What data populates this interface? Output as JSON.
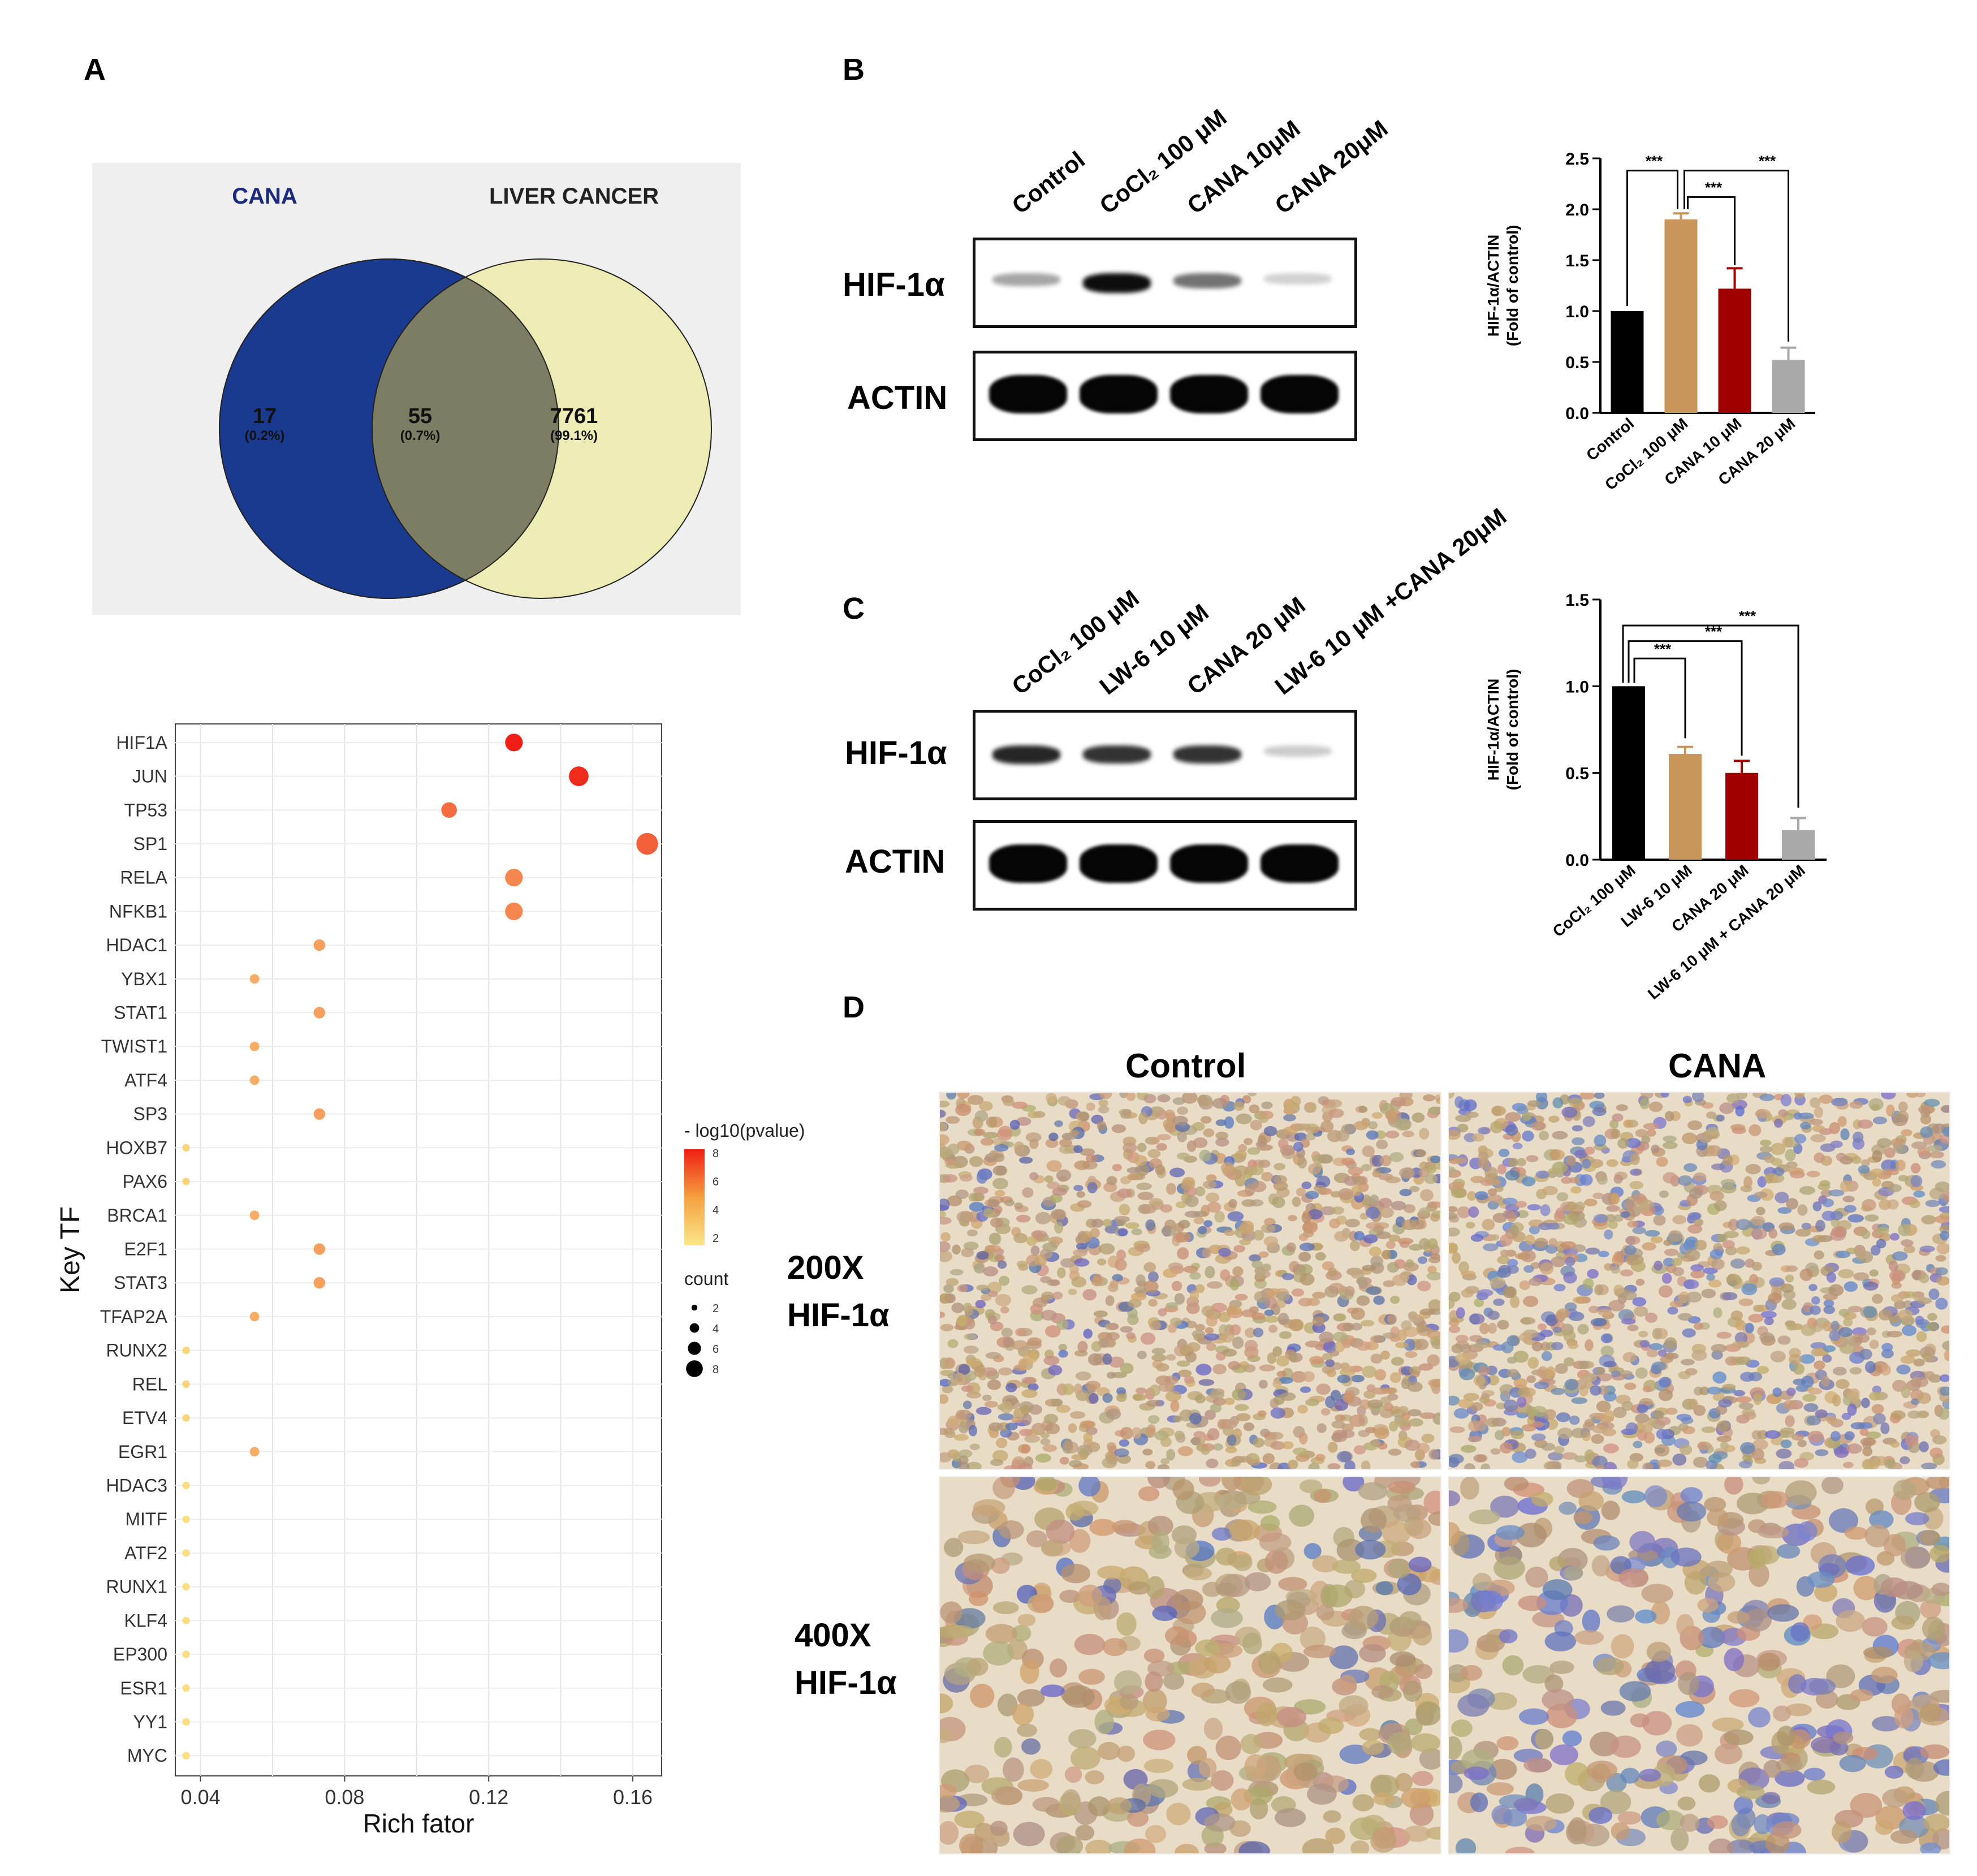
{
  "panels": {
    "a": "A",
    "b": "B",
    "c": "C",
    "d": "D"
  },
  "venn": {
    "left_label": "CANA",
    "right_label": "LIVER CANCER",
    "left_only": "17",
    "left_only_pct": "(0.2%)",
    "overlap": "55",
    "overlap_pct": "(0.7%)",
    "right_only": "7761",
    "right_only_pct": "(99.1%)",
    "colors": {
      "left": "#1a3a8f",
      "right": "#ececb4",
      "overlap": "#7d7d63",
      "background": "#efefef"
    }
  },
  "blot_b": {
    "lanes": [
      "Control",
      "CoCl₂ 100 μM",
      "CANA 10μM",
      "CANA 20μM"
    ],
    "rows": [
      "HIF-1α",
      "ACTIN"
    ],
    "hif_intensity": [
      0.35,
      0.95,
      0.55,
      0.18
    ]
  },
  "blot_c": {
    "lanes": [
      "CoCl₂ 100 μM",
      "LW-6 10 μM",
      "CANA 20 μM",
      "LW-6 10 μM +CANA 20μM"
    ],
    "rows": [
      "HIF-1α",
      "ACTIN"
    ],
    "hif_intensity": [
      0.85,
      0.8,
      0.8,
      0.2
    ]
  },
  "ihc": {
    "columns": [
      "Control",
      "CANA"
    ],
    "row1": [
      "200X",
      "HIF-1α"
    ],
    "row2": [
      "400X",
      "HIF-1α"
    ]
  },
  "chart_data": [
    {
      "type": "scatter",
      "ylabel": "Key TF",
      "xlabel": "Rich fator",
      "xticks": [
        "0.04",
        "0.08",
        "0.12",
        "0.16"
      ],
      "xlim": [
        0.033,
        0.168
      ],
      "categories": [
        "HIF1A",
        "JUN",
        "TP53",
        "SP1",
        "RELA",
        "NFKB1",
        "HDAC1",
        "YBX1",
        "STAT1",
        "TWIST1",
        "ATF4",
        "SP3",
        "HOXB7",
        "PAX6",
        "BRCA1",
        "E2F1",
        "STAT3",
        "TFAP2A",
        "RUNX2",
        "REL",
        "ETV4",
        "EGR1",
        "HDAC3",
        "MITF",
        "ATF2",
        "RUNX1",
        "KLF4",
        "EP300",
        "ESR1",
        "YY1",
        "MYC"
      ],
      "x": [
        0.127,
        0.145,
        0.109,
        0.164,
        0.127,
        0.127,
        0.073,
        0.055,
        0.073,
        0.055,
        0.055,
        0.073,
        0.036,
        0.036,
        0.055,
        0.073,
        0.073,
        0.055,
        0.036,
        0.036,
        0.036,
        0.055,
        0.036,
        0.036,
        0.036,
        0.036,
        0.036,
        0.036,
        0.036,
        0.036,
        0.036
      ],
      "count": [
        7,
        8,
        6,
        9,
        7,
        7,
        4,
        3,
        4,
        3,
        3,
        4,
        2,
        2,
        3,
        4,
        4,
        3,
        2,
        2,
        2,
        3,
        2,
        2,
        2,
        2,
        2,
        2,
        2,
        2,
        2
      ],
      "neglog10p": [
        9,
        8.5,
        6,
        6.5,
        5,
        5,
        4,
        3.5,
        4,
        3.5,
        3.5,
        4,
        2,
        2,
        3.5,
        4,
        4,
        3.5,
        2,
        2,
        2,
        3.5,
        1.6,
        1.6,
        1.6,
        1.6,
        1.6,
        1.6,
        1.6,
        1.6,
        1.6
      ],
      "legend_color_title": "- log10(pvalue)",
      "legend_color_ticks": [
        "8",
        "6",
        "4",
        "2"
      ],
      "legend_size_title": "count",
      "legend_size_ticks": [
        "2",
        "4",
        "6",
        "8"
      ]
    },
    {
      "type": "bar",
      "ylabel": "HIF-1α/ACTIN\n(Fold of control)",
      "categories": [
        "Control",
        "CoCl₂ 100 μM",
        "CANA 10 μM",
        "CANA 20 μM"
      ],
      "values": [
        1.0,
        1.9,
        1.22,
        0.52
      ],
      "errors": [
        0,
        0.06,
        0.2,
        0.12
      ],
      "colors": [
        "#000000",
        "#c8955a",
        "#a00000",
        "#a9a9a9"
      ],
      "ylim": [
        0,
        2.5
      ],
      "yticks": [
        "0.0",
        "0.5",
        "1.0",
        "1.5",
        "2.0",
        "2.5"
      ],
      "significance": [
        "***",
        "***",
        "***"
      ]
    },
    {
      "type": "bar",
      "ylabel": "HIF-1α/ACTIN\n(Fold of control)",
      "categories": [
        "CoCl₂ 100 μM",
        "LW-6 10 μM",
        "CANA 20 μM",
        "LW-6 10 μM + CANA 20 μM"
      ],
      "values": [
        1.0,
        0.61,
        0.5,
        0.17
      ],
      "errors": [
        0,
        0.04,
        0.07,
        0.07
      ],
      "colors": [
        "#000000",
        "#c8955a",
        "#a00000",
        "#a9a9a9"
      ],
      "ylim": [
        0,
        1.5
      ],
      "yticks": [
        "0.0",
        "0.5",
        "1.0",
        "1.5"
      ],
      "significance": [
        "***",
        "***",
        "***"
      ]
    }
  ]
}
